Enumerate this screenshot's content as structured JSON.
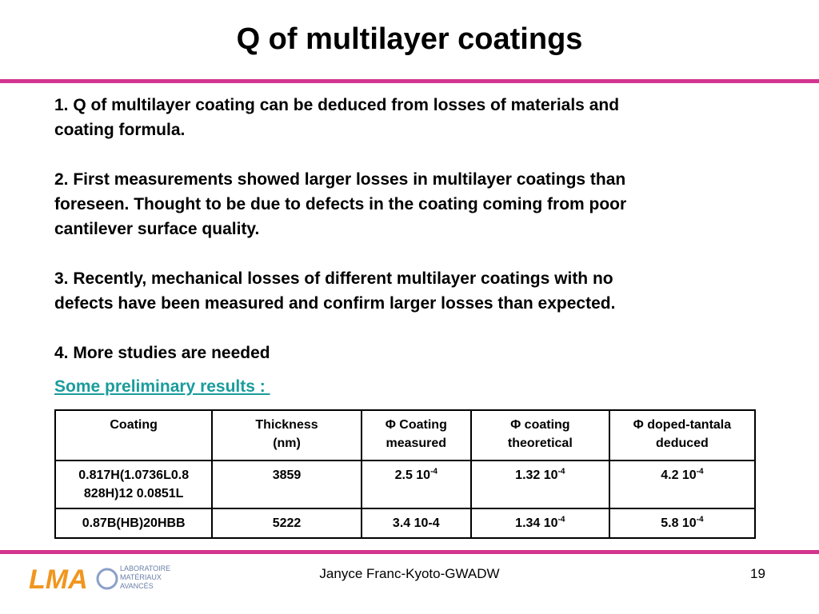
{
  "header": {
    "title": "Q of multilayer coatings"
  },
  "body": {
    "paragraphs": [
      [
        "1. Q of multilayer coating can be deduced from losses of materials and",
        "coating formula."
      ],
      [
        "2. First measurements showed larger losses in multilayer coatings than",
        "foreseen. Thought to be due to defects in the coating coming from poor",
        "cantilever surface quality."
      ],
      [
        "3. Recently, mechanical losses of different multilayer coatings with no",
        "defects have been measured and confirm larger losses than expected."
      ],
      [
        "4. More studies are needed"
      ]
    ],
    "link": "Some preliminary results : "
  },
  "table": {
    "header": [
      [
        "Coating"
      ],
      [
        "Thickness",
        "(nm)"
      ],
      [
        "Φ Coating",
        "measured"
      ],
      [
        "Φ coating",
        "theoretical"
      ],
      [
        "Φ doped-tantala",
        "deduced"
      ]
    ],
    "rows": [
      [
        [
          "0.817H(1.0736L0.8",
          "828H)12 0.0851L"
        ],
        [
          "3859"
        ],
        [
          {
            "text": "2.5 10",
            "sup": "-4"
          }
        ],
        [
          {
            "text": "1.32 10",
            "sup": "-4"
          }
        ],
        [
          {
            "text": "4.2 10",
            "sup": "-4"
          }
        ]
      ],
      [
        [
          "0.87B(HB)20HBB"
        ],
        [
          "5222"
        ],
        [
          "3.4 10-4"
        ],
        [
          {
            "text": "1.34 10",
            "sup": "-4"
          }
        ],
        [
          {
            "text": "5.8 10",
            "sup": "-4"
          }
        ]
      ]
    ]
  },
  "footer": {
    "author": "Janyce Franc-Kyoto-GWADW",
    "page": "19"
  },
  "logo": {
    "mark": "LMA",
    "lines": [
      "LABORATOIRE",
      "MATÉRIAUX",
      "AVANCÉS"
    ]
  }
}
